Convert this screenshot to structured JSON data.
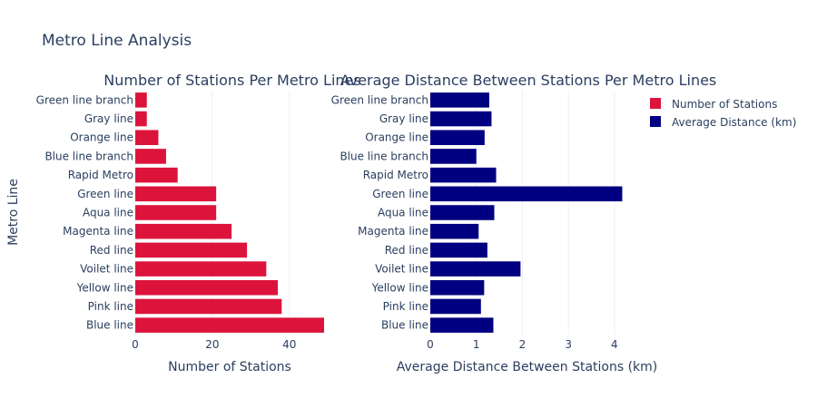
{
  "title": "Metro Line Analysis",
  "ylabel": "Metro Line",
  "colors": {
    "stations": "#dc143c",
    "distance": "#000080",
    "text": "#2a3f5f",
    "grid": "#ebf0f8"
  },
  "chart_data": [
    {
      "type": "bar",
      "orientation": "horizontal",
      "title": "Number of Stations Per Metro Lines",
      "xlabel": "Number of Stations",
      "ylabel": "Metro Line",
      "xlim": [
        0,
        49
      ],
      "xticks": [
        0,
        20,
        40
      ],
      "series_name": "Number of Stations",
      "categories": [
        "Blue line",
        "Pink line",
        "Yellow line",
        "Voilet line",
        "Red line",
        "Magenta line",
        "Aqua line",
        "Green line",
        "Rapid Metro",
        "Blue line branch",
        "Orange line",
        "Gray line",
        "Green line branch"
      ],
      "values": [
        49,
        38,
        37,
        34,
        29,
        25,
        21,
        21,
        11,
        8,
        6,
        3,
        3
      ]
    },
    {
      "type": "bar",
      "orientation": "horizontal",
      "title": "Average Distance Between Stations Per Metro Lines",
      "xlabel": "Average Distance Between Stations (km)",
      "xlim": [
        0,
        4.2
      ],
      "xticks": [
        0,
        1,
        2,
        3,
        4
      ],
      "series_name": "Average Distance (km)",
      "categories": [
        "Blue line",
        "Pink line",
        "Yellow line",
        "Voilet line",
        "Red line",
        "Magenta line",
        "Aqua line",
        "Green line",
        "Rapid Metro",
        "Blue line branch",
        "Orange line",
        "Gray line",
        "Green line branch"
      ],
      "values": [
        1.37,
        1.1,
        1.17,
        1.96,
        1.24,
        1.05,
        1.39,
        4.17,
        1.43,
        1.0,
        1.18,
        1.33,
        1.28
      ]
    }
  ]
}
